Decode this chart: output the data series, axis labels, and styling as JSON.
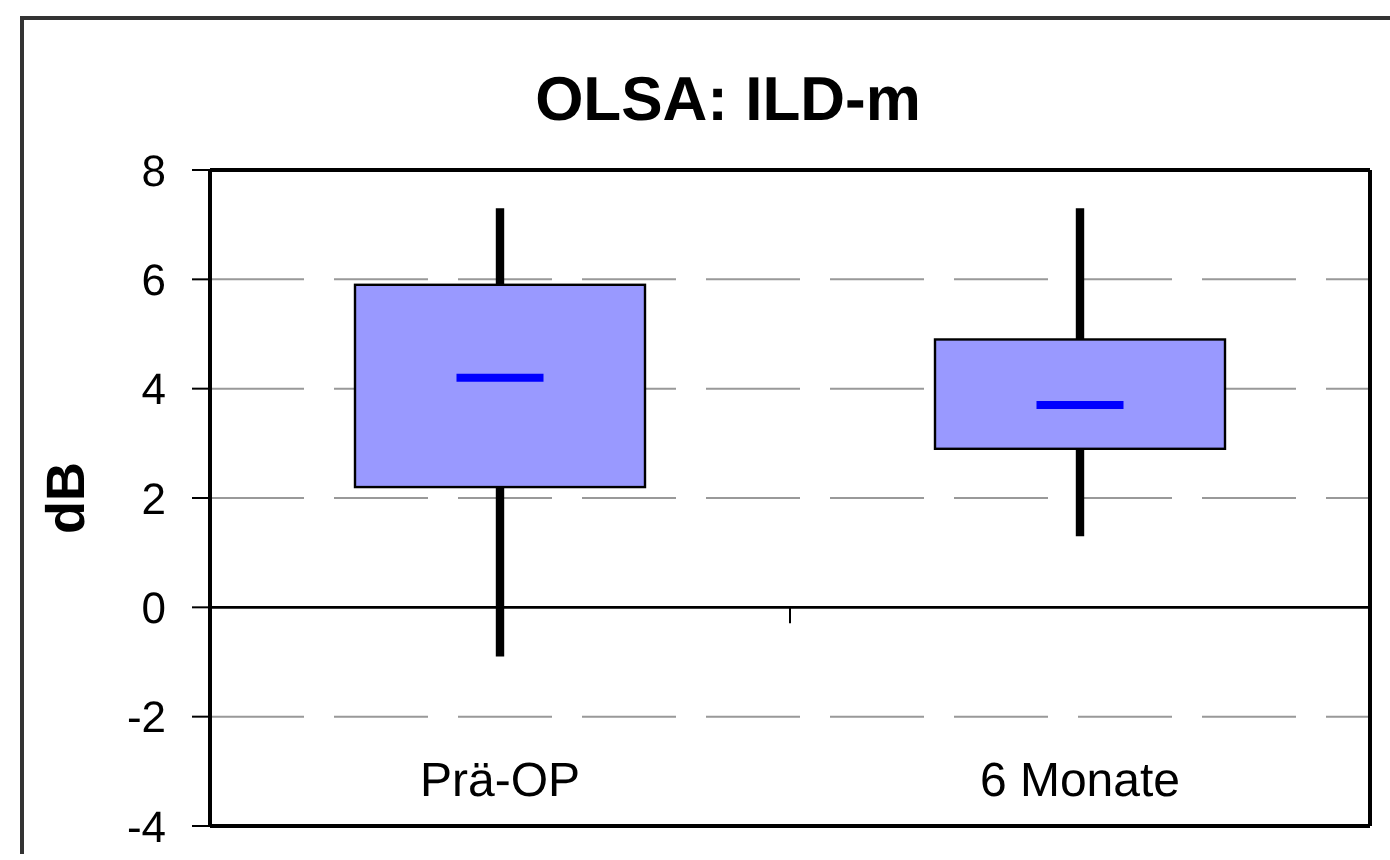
{
  "chart_data": {
    "type": "box",
    "title": "OLSA: ILD-m",
    "ylabel": "dB",
    "categories": [
      "Prä-OP",
      "6 Monate"
    ],
    "series": [
      {
        "color": "#9999ff",
        "boxes": [
          {
            "low": -0.9,
            "q1": 2.2,
            "median": 4.2,
            "q3": 5.9,
            "high": 7.3
          },
          {
            "low": 1.3,
            "q1": 2.9,
            "median": 3.7,
            "q3": 4.9,
            "high": 7.3
          }
        ]
      }
    ],
    "ylim": [
      -4,
      8
    ],
    "yticks": [
      -4,
      -2,
      0,
      2,
      4,
      6,
      8
    ],
    "grid": "y"
  }
}
